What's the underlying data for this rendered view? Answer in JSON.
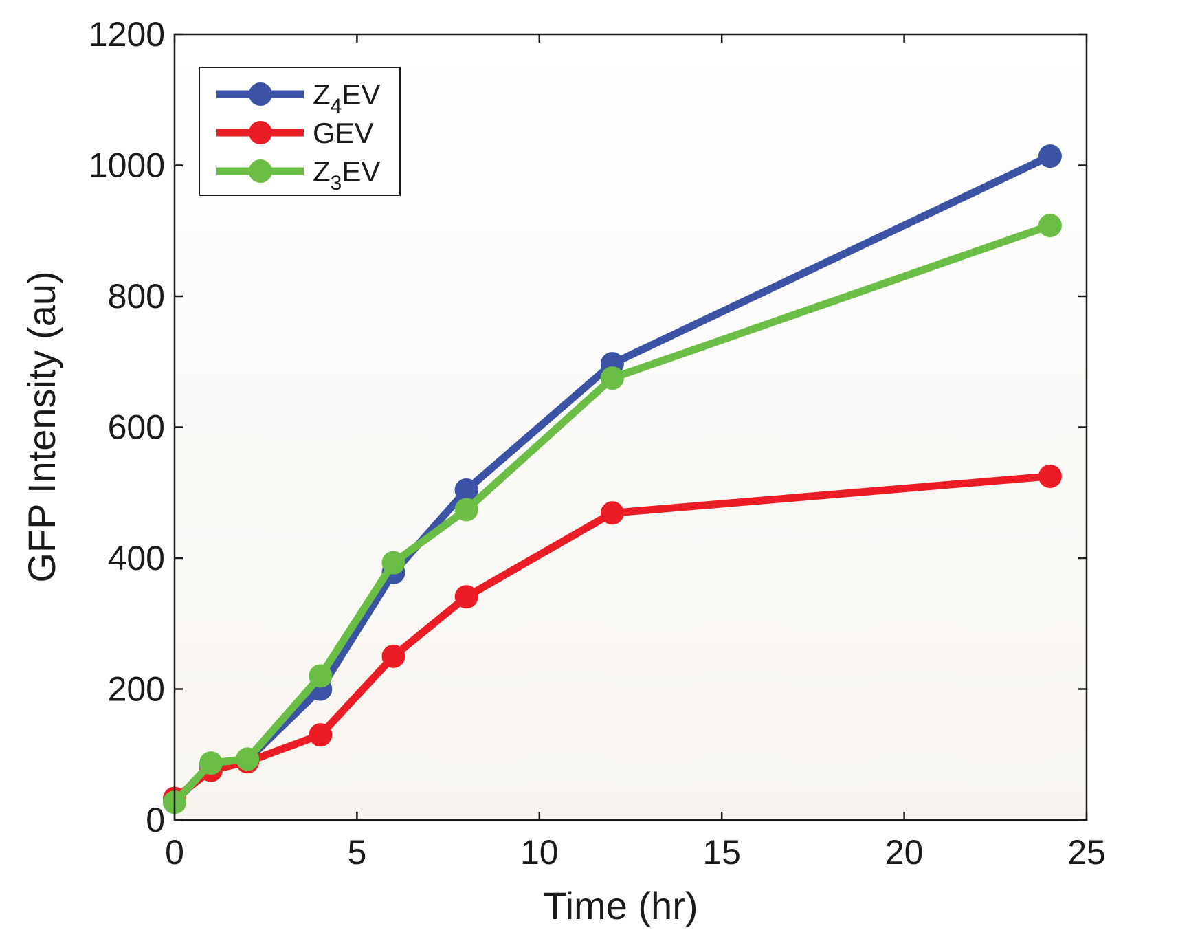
{
  "chart_data": {
    "type": "line",
    "title": "",
    "xlabel": "Time (hr)",
    "ylabel": "GFP Intensity (au)",
    "xlim": [
      0,
      25
    ],
    "ylim": [
      0,
      1200
    ],
    "xticks": [
      0,
      5,
      10,
      15,
      20,
      25
    ],
    "yticks": [
      0,
      200,
      400,
      600,
      800,
      1000,
      1200
    ],
    "xtick_labels": [
      "0",
      "5",
      "10",
      "15",
      "20",
      "25"
    ],
    "ytick_labels": [
      "0",
      "200",
      "400",
      "600",
      "800",
      "1000",
      "1200"
    ],
    "grid": false,
    "legend_position": "top-left",
    "series": [
      {
        "name": "Z4EV",
        "label_main": "Z",
        "label_sub": "4",
        "label_tail": "EV",
        "color": "#3a53a4",
        "x": [
          0,
          1,
          2,
          4,
          6,
          8,
          12,
          24
        ],
        "values": [
          28,
          83,
          92,
          200,
          378,
          504,
          697,
          1014
        ]
      },
      {
        "name": "GEV",
        "label_main": "GEV",
        "label_sub": "",
        "label_tail": "",
        "color": "#ec1c24",
        "x": [
          0,
          1,
          2,
          4,
          6,
          8,
          12,
          24
        ],
        "values": [
          33,
          76,
          89,
          130,
          250,
          341,
          469,
          525
        ]
      },
      {
        "name": "Z3EV",
        "label_main": "Z",
        "label_sub": "3",
        "label_tail": "EV",
        "color": "#6abd45",
        "x": [
          0,
          1,
          2,
          4,
          6,
          8,
          12,
          24
        ],
        "values": [
          27,
          87,
          93,
          220,
          393,
          474,
          675,
          908
        ]
      }
    ]
  }
}
